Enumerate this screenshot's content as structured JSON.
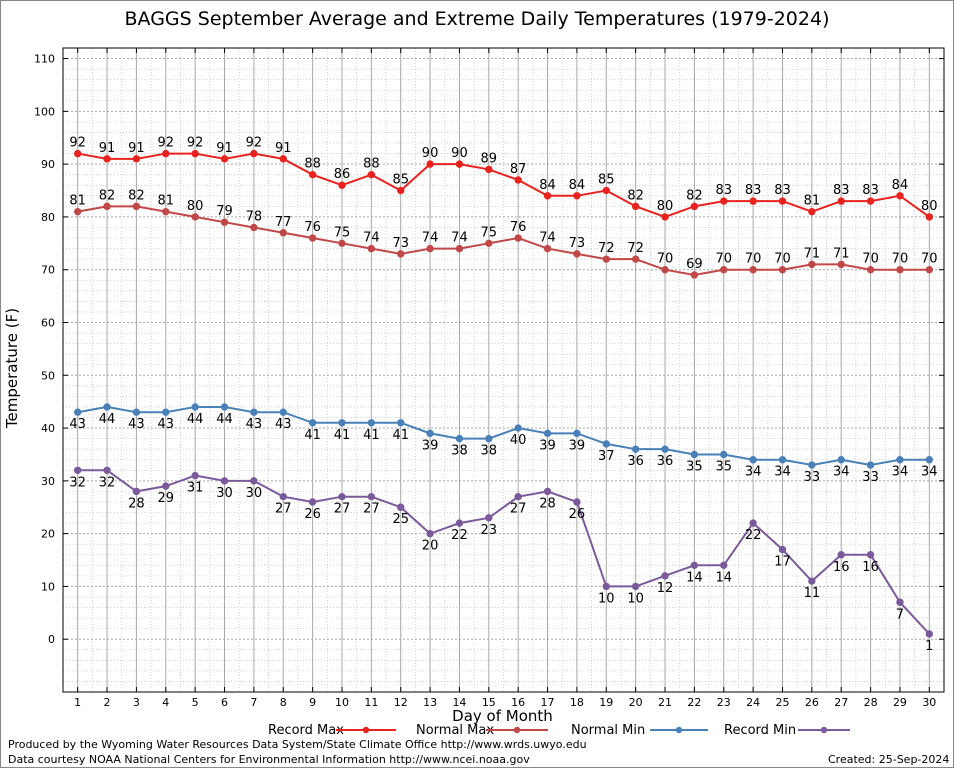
{
  "title": "BAGGS September Average and Extreme Daily Temperatures (1979-2024)",
  "footer": {
    "line1": "Produced by the Wyoming Water Resources Data System/State Climate Office http://www.wrds.uwyo.edu",
    "line2": "Data courtesy NOAA National Centers for Environmental Information http://www.ncei.noaa.gov",
    "created": "Created:  25-Sep-2024"
  },
  "chart_data": {
    "type": "line",
    "title": "BAGGS September Average and Extreme Daily Temperatures (1979-2024)",
    "xlabel": "Day of Month",
    "ylabel": "Temperature (F)",
    "x": [
      1,
      2,
      3,
      4,
      5,
      6,
      7,
      8,
      9,
      10,
      11,
      12,
      13,
      14,
      15,
      16,
      17,
      18,
      19,
      20,
      21,
      22,
      23,
      24,
      25,
      26,
      27,
      28,
      29,
      30
    ],
    "xlim": [
      0.5,
      30.5
    ],
    "ylim": [
      -10,
      112
    ],
    "yticks": [
      0,
      10,
      20,
      30,
      40,
      50,
      60,
      70,
      80,
      90,
      100,
      110
    ],
    "grid": true,
    "legend_position": "bottom",
    "series": [
      {
        "name": "Record Max",
        "color": "#e8221f",
        "label_position": "above",
        "values": [
          92,
          91,
          91,
          92,
          92,
          91,
          92,
          91,
          88,
          86,
          88,
          85,
          90,
          90,
          89,
          87,
          84,
          84,
          85,
          82,
          80,
          82,
          83,
          83,
          83,
          81,
          83,
          83,
          84,
          80
        ]
      },
      {
        "name": "Normal Max",
        "color": "#c04848",
        "label_position": "above",
        "values": [
          81,
          82,
          82,
          81,
          80,
          79,
          78,
          77,
          76,
          75,
          74,
          73,
          74,
          74,
          75,
          76,
          74,
          73,
          72,
          72,
          70,
          69,
          70,
          70,
          70,
          71,
          71,
          70,
          70,
          70
        ]
      },
      {
        "name": "Normal Min",
        "color": "#4a80b8",
        "label_position": "below",
        "values": [
          43,
          44,
          43,
          43,
          44,
          44,
          43,
          43,
          41,
          41,
          41,
          41,
          39,
          38,
          38,
          40,
          39,
          39,
          37,
          36,
          36,
          35,
          35,
          34,
          34,
          33,
          34,
          33,
          34,
          34
        ]
      },
      {
        "name": "Record Min",
        "color": "#7a5a9a",
        "label_position": "below",
        "values": [
          32,
          32,
          28,
          29,
          31,
          30,
          30,
          27,
          26,
          27,
          27,
          25,
          20,
          22,
          23,
          27,
          28,
          26,
          10,
          10,
          12,
          14,
          14,
          22,
          17,
          11,
          16,
          16,
          7,
          1
        ]
      }
    ]
  }
}
